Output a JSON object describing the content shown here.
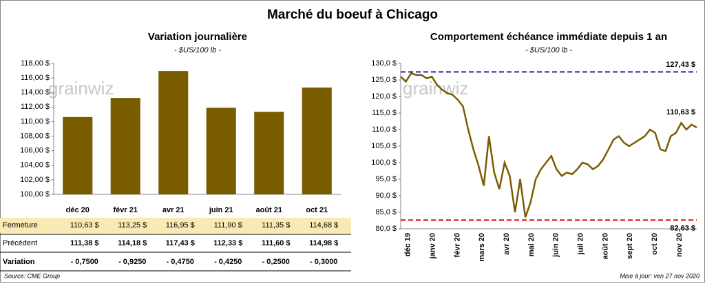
{
  "title": "Marché du boeuf à Chicago",
  "watermark": "grainwiz",
  "chart_data": [
    {
      "type": "bar",
      "title": "Variation journalière",
      "subtitle": "- $US/100 lb -",
      "categories": [
        "déc 20",
        "févr 21",
        "avr 21",
        "juin 21",
        "août 21",
        "oct 21"
      ],
      "values": [
        110.63,
        113.25,
        116.95,
        111.9,
        111.35,
        114.68
      ],
      "color": "#7a5c00",
      "ylim": [
        100,
        118
      ],
      "yticks": [
        {
          "value": 100,
          "label": "100,00 $"
        },
        {
          "value": 102,
          "label": "102,00 $"
        },
        {
          "value": 104,
          "label": "104,00 $"
        },
        {
          "value": 106,
          "label": "106,00 $"
        },
        {
          "value": 108,
          "label": "108,00 $"
        },
        {
          "value": 110,
          "label": "110,00 $"
        },
        {
          "value": 112,
          "label": "112,00 $"
        },
        {
          "value": 114,
          "label": "114,00 $"
        },
        {
          "value": 116,
          "label": "116,00 $"
        },
        {
          "value": 118,
          "label": "118,00 $"
        }
      ]
    },
    {
      "type": "line",
      "title": "Comportement échéance immédiate depuis 1 an",
      "subtitle": "- $US/100 lb -",
      "xticks": [
        "déc 19",
        "janv 20",
        "févr 20",
        "mars 20",
        "avr 20",
        "mai 20",
        "juin 20",
        "juil 20",
        "août 20",
        "sept 20",
        "oct 20",
        "nov 20"
      ],
      "values": [
        126,
        124.5,
        127,
        126.5,
        126.5,
        125.5,
        126,
        123.5,
        122,
        121,
        120.5,
        119,
        117,
        110,
        104,
        99,
        93,
        108,
        97,
        92,
        100,
        96,
        85,
        95,
        83.5,
        88,
        95,
        98,
        100,
        102,
        98,
        96,
        97,
        96.5,
        98,
        100,
        99.5,
        98,
        99,
        101,
        104,
        107,
        108,
        106,
        105,
        106,
        107,
        108,
        110,
        109,
        104,
        103.5,
        108,
        109,
        112,
        110,
        111.5,
        110.63
      ],
      "color": "#7a5c00",
      "ylim": [
        80,
        130
      ],
      "yticks": [
        {
          "value": 80,
          "label": "80,0 $"
        },
        {
          "value": 85,
          "label": "85,0 $"
        },
        {
          "value": 90,
          "label": "90,0 $"
        },
        {
          "value": 95,
          "label": "95,0 $"
        },
        {
          "value": 100,
          "label": "100,0 $"
        },
        {
          "value": 105,
          "label": "105,0 $"
        },
        {
          "value": 110,
          "label": "110,0 $"
        },
        {
          "value": 115,
          "label": "115,0 $"
        },
        {
          "value": 120,
          "label": "120,0 $"
        },
        {
          "value": 125,
          "label": "125,0 $"
        },
        {
          "value": 130,
          "label": "130,0 $"
        }
      ],
      "reference_lines": [
        {
          "value": 127.43,
          "label": "127,43 $",
          "color": "#2a1fa8"
        },
        {
          "value": 82.63,
          "label": "82,63 $",
          "color": "#e00000"
        }
      ],
      "last_label": {
        "value": 110.63,
        "label": "110,63 $"
      }
    }
  ],
  "table": {
    "rows": [
      {
        "label": "Fermeture",
        "cells": [
          "110,63 $",
          "113,25 $",
          "116,95 $",
          "111,90 $",
          "111,35 $",
          "114,68 $"
        ]
      },
      {
        "label": "Précédent",
        "cells": [
          "111,38 $",
          "114,18 $",
          "117,43 $",
          "112,33 $",
          "111,60 $",
          "114,98 $"
        ]
      },
      {
        "label": "Variation",
        "cells": [
          "- 0,7500",
          "- 0,9250",
          "- 0,4750",
          "- 0,4250",
          "- 0,2500",
          "- 0,3000"
        ]
      }
    ]
  },
  "footer": {
    "source": "Source: CME Group",
    "updated": "Mise à jour: ven 27 nov 2020"
  }
}
